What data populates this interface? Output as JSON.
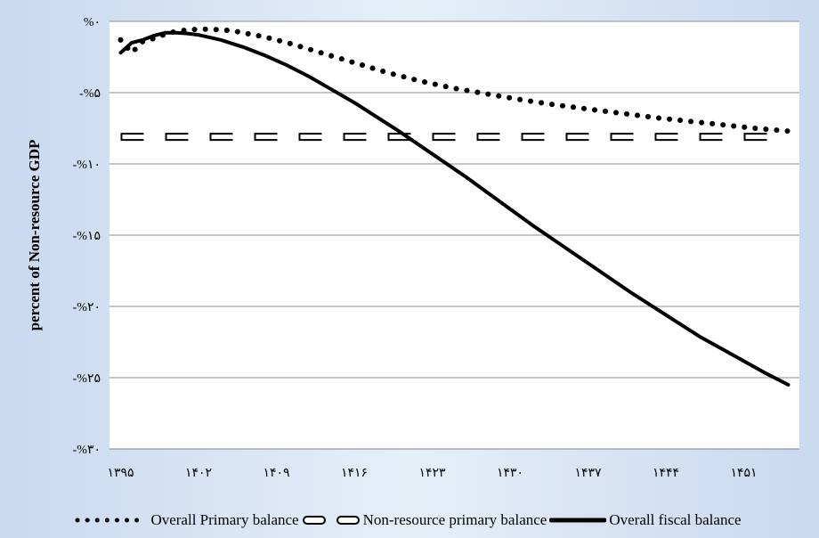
{
  "chart_data": {
    "type": "line",
    "title": "",
    "xlabel": "",
    "ylabel": "percent of Non-resource GDP",
    "x_ticks": [
      "۱۳۹۵",
      "۱۴۰۲",
      "۱۴۰۹",
      "۱۴۱۶",
      "۱۴۲۳",
      "۱۴۳۰",
      "۱۴۳۷",
      "۱۴۴۴",
      "۱۴۵۱"
    ],
    "y_ticks": [
      "%۰",
      "-%۵",
      "-%۱۰",
      "-%۱۵",
      "-%۲۰",
      "-%۲۵",
      "-%۳۰"
    ],
    "ylim": [
      -30,
      0
    ],
    "xlim": [
      1394,
      1456
    ],
    "grid": "horizontal",
    "legend_position": "bottom",
    "series": [
      {
        "name": "Overall Primary balance",
        "style": "dotted",
        "color": "#000000",
        "x": [
          1395,
          1396,
          1397,
          1398,
          1399,
          1400,
          1401,
          1402,
          1403,
          1405,
          1408,
          1410,
          1413,
          1416,
          1419,
          1422,
          1425,
          1428,
          1431,
          1434,
          1437,
          1440,
          1443,
          1446,
          1449,
          1452,
          1455
        ],
        "y": [
          -1.3,
          -2.2,
          -1.4,
          -1.2,
          -0.9,
          -0.7,
          -0.6,
          -0.55,
          -0.55,
          -0.65,
          -1.1,
          -1.5,
          -2.2,
          -2.9,
          -3.6,
          -4.2,
          -4.7,
          -5.1,
          -5.5,
          -5.85,
          -6.15,
          -6.45,
          -6.75,
          -7.0,
          -7.25,
          -7.5,
          -7.7
        ]
      },
      {
        "name": "Non-resource primary balance",
        "style": "dashed-hollow",
        "color": "#000000",
        "x": [
          1395,
          1455
        ],
        "y": [
          -8.1,
          -8.1
        ]
      },
      {
        "name": "Overall fiscal balance",
        "style": "solid-thick",
        "color": "#000000",
        "x": [
          1395,
          1396,
          1397,
          1398,
          1399,
          1400,
          1401,
          1402,
          1404,
          1406,
          1408,
          1410,
          1412,
          1414,
          1416,
          1418,
          1420,
          1423,
          1426,
          1429,
          1432,
          1435,
          1438,
          1441,
          1444,
          1447,
          1450,
          1453,
          1455
        ],
        "y": [
          -2.2,
          -1.5,
          -1.3,
          -1.0,
          -0.8,
          -0.8,
          -0.85,
          -0.95,
          -1.3,
          -1.8,
          -2.4,
          -3.1,
          -3.9,
          -4.8,
          -5.7,
          -6.7,
          -7.7,
          -9.3,
          -10.9,
          -12.6,
          -14.3,
          -15.9,
          -17.5,
          -19.1,
          -20.6,
          -22.1,
          -23.4,
          -24.7,
          -25.5
        ]
      }
    ]
  }
}
